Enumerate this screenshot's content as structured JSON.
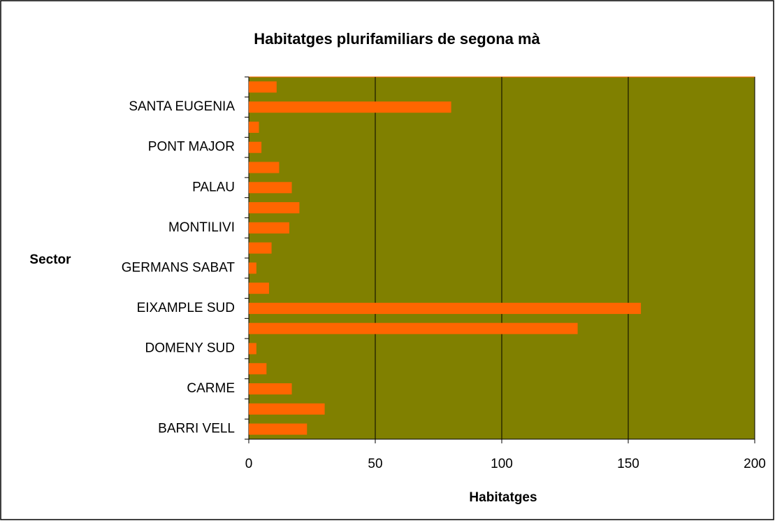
{
  "chart_data": {
    "type": "bar",
    "orientation": "horizontal",
    "title": "Habitatges plurifamiliars de segona mà",
    "x_label": "Habitatges",
    "y_label": "Sector",
    "categories": [
      "BARRI VELL",
      null,
      "CARME",
      null,
      "DOMENY SUD",
      null,
      "EIXAMPLE SUD",
      null,
      "GERMANS SABAT",
      null,
      "MONTILIVI",
      null,
      "PALAU",
      null,
      "PONT MAJOR",
      null,
      "SANTA EUGENIA",
      null
    ],
    "values": [
      23,
      30,
      17,
      7,
      3,
      130,
      155,
      8,
      3,
      9,
      16,
      20,
      17,
      12,
      5,
      4,
      80,
      11
    ],
    "color": "#ff6600",
    "plot_background": "#808000",
    "xlim": [
      0,
      200
    ],
    "xticks": [
      0,
      50,
      100,
      150,
      200
    ],
    "grid": true
  }
}
